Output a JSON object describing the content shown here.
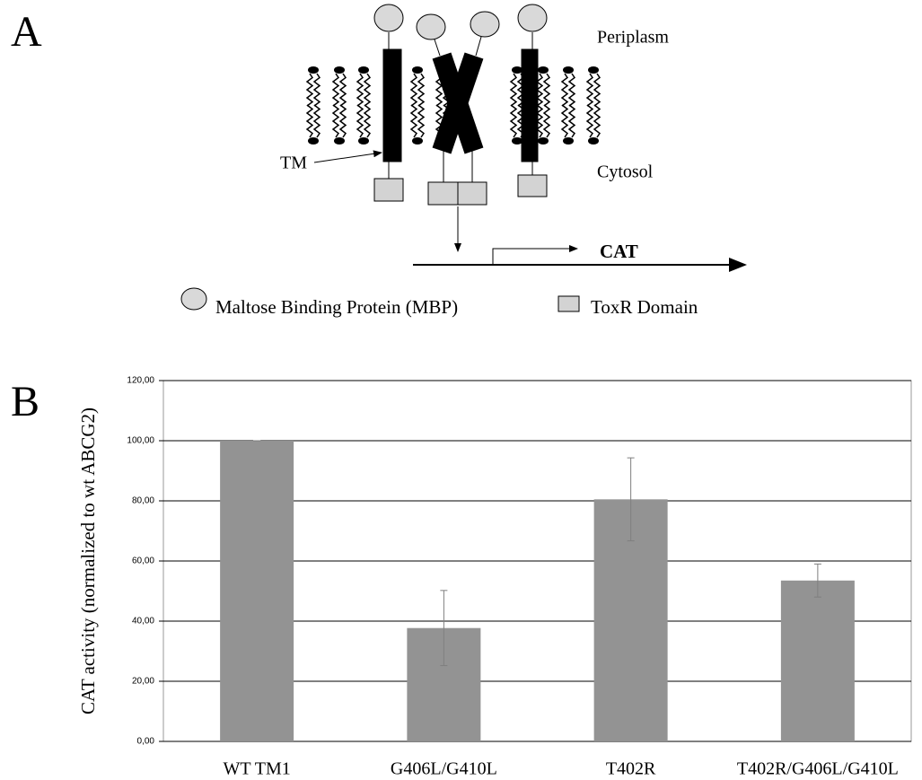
{
  "panels": [
    "A",
    "B"
  ],
  "diagram": {
    "periplasm": "Periplasm",
    "cytosol": "Cytosol",
    "tm": "TM",
    "reporter": "CAT",
    "legend": [
      "Maltose Binding Protein (MBP)",
      "ToxR Domain"
    ]
  },
  "chart_data": {
    "type": "bar",
    "ylabel": "CAT activity (normalized to wt ABCG2)",
    "categories": [
      "WT TM1",
      "G406L/G410L",
      "T402R",
      "T402R/G406L/G410L"
    ],
    "values": [
      100,
      37.7,
      80.5,
      53.5
    ],
    "errors": [
      0,
      12.5,
      13.8,
      5.5
    ],
    "color": "#939393",
    "ylim": [
      0,
      120
    ],
    "yticks": [
      {
        "value": 0,
        "label": "0,00"
      },
      {
        "value": 20,
        "label": "20,00"
      },
      {
        "value": 40,
        "label": "40,00"
      },
      {
        "value": 60,
        "label": "60,00"
      },
      {
        "value": 80,
        "label": "80,00"
      },
      {
        "value": 100,
        "label": "100,00"
      },
      {
        "value": 120,
        "label": "120,00"
      }
    ],
    "grid": true
  }
}
